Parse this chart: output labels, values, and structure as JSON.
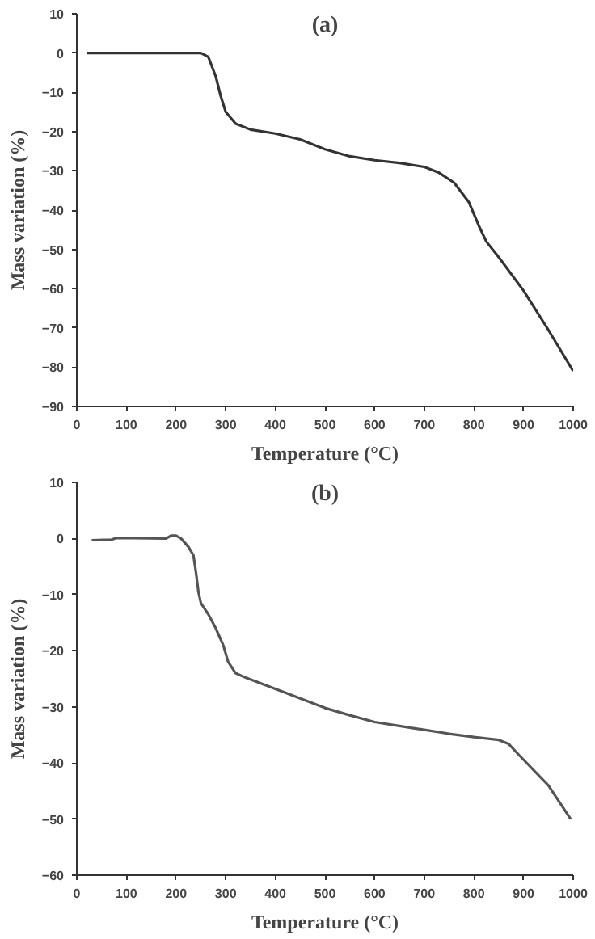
{
  "chart_data": [
    {
      "type": "line",
      "title": "(a)",
      "xlabel": "Temperature (°C)",
      "ylabel": "Mass variation (%)",
      "xlim": [
        0,
        1000
      ],
      "ylim": [
        -90,
        10
      ],
      "xticks": [
        0,
        100,
        200,
        300,
        400,
        500,
        600,
        700,
        800,
        900,
        1000
      ],
      "yticks": [
        -90,
        -80,
        -70,
        -60,
        -50,
        -40,
        -30,
        -20,
        -10,
        0,
        10
      ],
      "grid": false,
      "series": [
        {
          "color": "#333333",
          "x": [
            20,
            100,
            200,
            250,
            265,
            280,
            290,
            300,
            320,
            350,
            400,
            450,
            500,
            550,
            600,
            650,
            700,
            730,
            760,
            790,
            810,
            825,
            850,
            900,
            950,
            1000
          ],
          "values": [
            0,
            0,
            0,
            0,
            -1,
            -6,
            -11,
            -15,
            -18,
            -19.5,
            -20.5,
            -22,
            -24.5,
            -26.3,
            -27.3,
            -28,
            -29,
            -30.5,
            -33,
            -38,
            -44,
            -48,
            -52,
            -60.5,
            -70.5,
            -81
          ]
        }
      ]
    },
    {
      "type": "line",
      "title": "(b)",
      "xlabel": "Temperature (°C)",
      "ylabel": "Mass variation (%)",
      "xlim": [
        0,
        1000
      ],
      "ylim": [
        -60,
        10
      ],
      "xticks": [
        0,
        100,
        200,
        300,
        400,
        500,
        600,
        700,
        800,
        900,
        1000
      ],
      "yticks": [
        -60,
        -50,
        -40,
        -30,
        -20,
        -10,
        0,
        10
      ],
      "grid": false,
      "series": [
        {
          "color": "#555555",
          "x": [
            30,
            70,
            80,
            180,
            190,
            200,
            210,
            225,
            235,
            240,
            245,
            250,
            265,
            280,
            295,
            305,
            320,
            340,
            400,
            450,
            500,
            550,
            600,
            650,
            700,
            750,
            800,
            850,
            870,
            890,
            950,
            995
          ],
          "values": [
            -0.3,
            -0.2,
            0.1,
            0,
            0.5,
            0.5,
            0,
            -1.5,
            -3,
            -6,
            -9.5,
            -11.5,
            -13.5,
            -16,
            -19,
            -22,
            -24,
            -24.8,
            -26.8,
            -28.5,
            -30.2,
            -31.5,
            -32.7,
            -33.4,
            -34.1,
            -34.8,
            -35.4,
            -35.9,
            -36.6,
            -38.5,
            -44,
            -50
          ]
        }
      ]
    }
  ]
}
